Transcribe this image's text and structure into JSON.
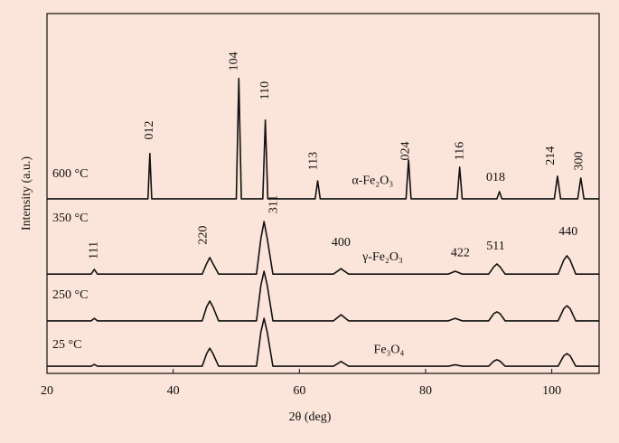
{
  "chart_data": {
    "type": "line",
    "xlabel": "2θ (deg)",
    "ylabel": "Intensity (a.u.)",
    "xlim": [
      20,
      107.5
    ],
    "xticks": [
      20,
      40,
      60,
      80,
      100
    ],
    "ylim": [
      0,
      100
    ],
    "series": [
      {
        "name": "600 °C",
        "color": "#111111",
        "x": [
          20,
          36.0,
          36.3,
          36.6,
          50.0,
          50.4,
          50.8,
          54.2,
          54.6,
          55.0,
          62.5,
          62.9,
          63.3,
          76.9,
          77.3,
          77.7,
          85.0,
          85.4,
          85.8,
          91.3,
          91.7,
          92.1,
          100.4,
          100.9,
          101.4,
          104.1,
          104.6,
          105.1,
          107.5
        ],
        "values": [
          48.5,
          48.5,
          61.1,
          48.5,
          48.5,
          82,
          48.5,
          48.5,
          70.4,
          48.5,
          48.5,
          53.5,
          48.5,
          48.5,
          59.3,
          48.5,
          48.5,
          57.3,
          48.5,
          48.5,
          50.5,
          48.5,
          48.5,
          54.8,
          48.5,
          48.5,
          54.3,
          48.5,
          48.5
        ]
      },
      {
        "name": "350 °C",
        "color": "#111111",
        "x": [
          20,
          27.0,
          27.5,
          28.0,
          44.6,
          45.3,
          45.8,
          46.3,
          47.2,
          53.2,
          53.9,
          54.4,
          54.9,
          55.8,
          65.4,
          66.6,
          67.8,
          83.6,
          84.7,
          85.8,
          90.0,
          90.8,
          91.3,
          91.8,
          92.6,
          101.0,
          101.9,
          102.4,
          102.9,
          103.8,
          107.5
        ],
        "values": [
          27.6,
          27.6,
          28.9,
          27.6,
          27.6,
          30.5,
          32.2,
          30.5,
          27.6,
          27.6,
          37.5,
          42.2,
          37.5,
          27.6,
          27.6,
          29.1,
          27.6,
          27.6,
          28.4,
          27.6,
          27.6,
          29.6,
          30.4,
          29.6,
          27.6,
          27.6,
          31.5,
          32.7,
          31.5,
          27.6,
          27.6
        ]
      },
      {
        "name": "250 °C",
        "color": "#111111",
        "x": [
          20,
          27.0,
          27.5,
          28.0,
          44.6,
          45.3,
          45.8,
          46.3,
          47.2,
          53.2,
          53.9,
          54.4,
          54.9,
          55.8,
          65.4,
          66.6,
          67.8,
          83.6,
          84.7,
          85.8,
          90.0,
          90.8,
          91.3,
          91.8,
          92.6,
          101.0,
          101.9,
          102.4,
          102.9,
          103.8,
          107.5
        ],
        "values": [
          14.6,
          14.6,
          15.3,
          14.6,
          14.6,
          18.5,
          20.1,
          18.5,
          14.6,
          14.6,
          24.5,
          28.4,
          24.5,
          14.6,
          14.6,
          16.3,
          14.6,
          14.6,
          15.3,
          14.6,
          14.6,
          16.6,
          17.1,
          16.6,
          14.6,
          14.6,
          18.0,
          18.8,
          18.0,
          14.6,
          14.6
        ]
      },
      {
        "name": "25 °C",
        "color": "#111111",
        "x": [
          20,
          27.0,
          27.5,
          28.0,
          44.6,
          45.3,
          45.8,
          46.3,
          47.2,
          53.2,
          53.9,
          54.4,
          54.9,
          55.8,
          65.4,
          66.6,
          67.8,
          83.6,
          84.7,
          85.8,
          90.0,
          90.8,
          91.3,
          91.8,
          92.6,
          101.0,
          101.9,
          102.4,
          102.9,
          103.8,
          107.5
        ],
        "values": [
          2.0,
          2.0,
          2.5,
          2.0,
          2.0,
          5.5,
          7.0,
          5.5,
          2.0,
          2.0,
          11.5,
          15.3,
          11.5,
          2.0,
          2.0,
          3.3,
          2.0,
          2.0,
          2.4,
          2.0,
          2.0,
          3.4,
          3.8,
          3.4,
          2.0,
          2.0,
          4.9,
          5.5,
          4.9,
          2.0,
          2.0
        ]
      }
    ],
    "annotations": [
      {
        "text": "012",
        "x": 36.3,
        "y": 67.6,
        "vertical": true
      },
      {
        "text": "104",
        "x": 49.7,
        "y": 86.7,
        "vertical": true
      },
      {
        "text": "110",
        "x": 54.6,
        "y": 78.6,
        "vertical": true
      },
      {
        "text": "113",
        "x": 62.3,
        "y": 59.0,
        "vertical": true
      },
      {
        "text": "024",
        "x": 76.9,
        "y": 61.8,
        "vertical": true
      },
      {
        "text": "116",
        "x": 85.5,
        "y": 61.8,
        "vertical": true
      },
      {
        "text": "018",
        "x": 91.1,
        "y": 54.3,
        "vertical": false
      },
      {
        "text": "214",
        "x": 99.9,
        "y": 60.5,
        "vertical": true
      },
      {
        "text": "300",
        "x": 104.4,
        "y": 59.0,
        "vertical": true
      },
      {
        "text": "111",
        "x": 27.5,
        "y": 34.2,
        "vertical": true
      },
      {
        "text": "220",
        "x": 44.8,
        "y": 38.4,
        "vertical": true
      },
      {
        "text": "311",
        "x": 56.0,
        "y": 47.0,
        "vertical": true
      },
      {
        "text": "400",
        "x": 66.6,
        "y": 36.2,
        "vertical": false
      },
      {
        "text": "422",
        "x": 85.5,
        "y": 33.4,
        "vertical": false
      },
      {
        "text": "511",
        "x": 91.1,
        "y": 35.2,
        "vertical": false
      },
      {
        "text": "440",
        "x": 102.6,
        "y": 39.2,
        "vertical": false
      },
      {
        "text": "α-Fe₂O₃",
        "x": 71.6,
        "y": 53.5,
        "vertical": false
      },
      {
        "text": "γ-Fe₂O₃",
        "x": 73.2,
        "y": 32.2,
        "vertical": false
      },
      {
        "text": "Fe₃O₄",
        "x": 74.2,
        "y": 6.5,
        "vertical": false
      }
    ]
  }
}
